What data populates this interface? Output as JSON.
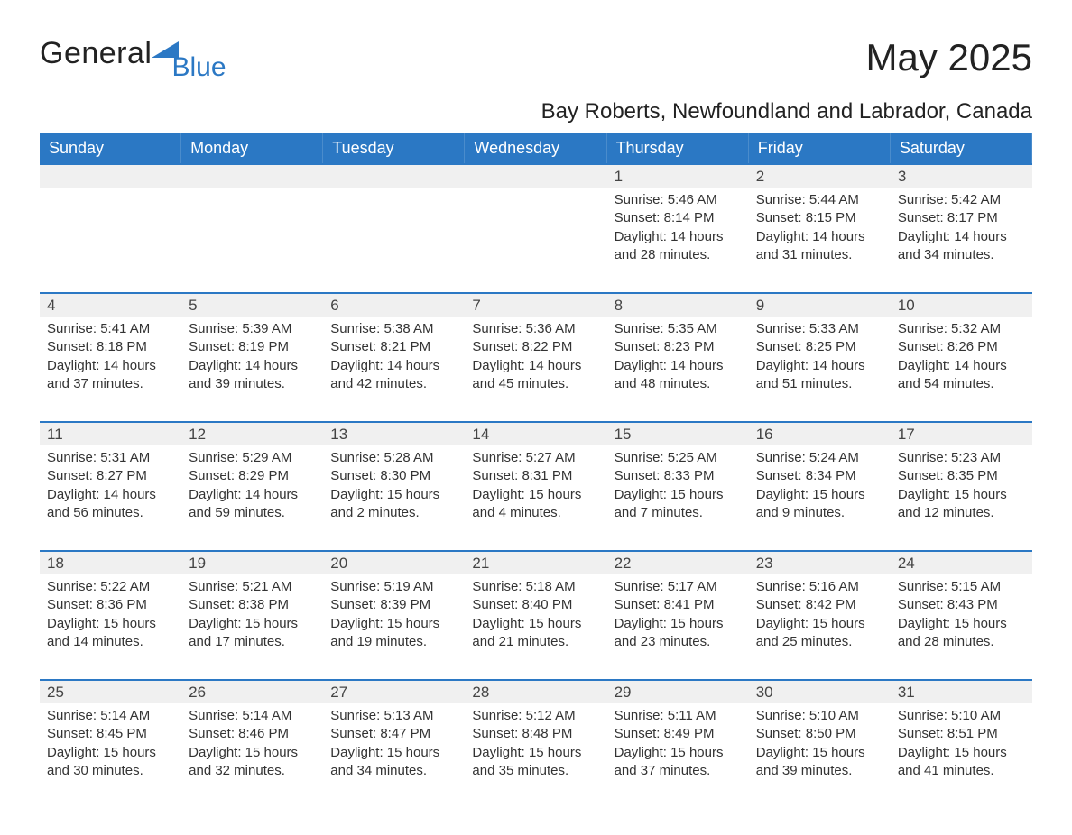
{
  "brand": {
    "word1": "General",
    "word2": "Blue"
  },
  "title": "May 2025",
  "subtitle": "Bay Roberts, Newfoundland and Labrador, Canada",
  "colors": {
    "brand": "#2b78c4",
    "row_bg": "#f0f0f0",
    "text": "#333333",
    "page_bg": "#ffffff"
  },
  "typography": {
    "title_fontsize": 42,
    "subtitle_fontsize": 24,
    "header_fontsize": 18,
    "daynum_fontsize": 17,
    "body_fontsize": 15,
    "font_family": "Arial"
  },
  "dayHeaders": [
    "Sunday",
    "Monday",
    "Tuesday",
    "Wednesday",
    "Thursday",
    "Friday",
    "Saturday"
  ],
  "labels": {
    "sunrise": "Sunrise:",
    "sunset": "Sunset:",
    "daylight": "Daylight:"
  },
  "weeks": [
    [
      null,
      null,
      null,
      null,
      {
        "n": 1,
        "sunrise": "5:46 AM",
        "sunset": "8:14 PM",
        "daylight": "14 hours and 28 minutes."
      },
      {
        "n": 2,
        "sunrise": "5:44 AM",
        "sunset": "8:15 PM",
        "daylight": "14 hours and 31 minutes."
      },
      {
        "n": 3,
        "sunrise": "5:42 AM",
        "sunset": "8:17 PM",
        "daylight": "14 hours and 34 minutes."
      }
    ],
    [
      {
        "n": 4,
        "sunrise": "5:41 AM",
        "sunset": "8:18 PM",
        "daylight": "14 hours and 37 minutes."
      },
      {
        "n": 5,
        "sunrise": "5:39 AM",
        "sunset": "8:19 PM",
        "daylight": "14 hours and 39 minutes."
      },
      {
        "n": 6,
        "sunrise": "5:38 AM",
        "sunset": "8:21 PM",
        "daylight": "14 hours and 42 minutes."
      },
      {
        "n": 7,
        "sunrise": "5:36 AM",
        "sunset": "8:22 PM",
        "daylight": "14 hours and 45 minutes."
      },
      {
        "n": 8,
        "sunrise": "5:35 AM",
        "sunset": "8:23 PM",
        "daylight": "14 hours and 48 minutes."
      },
      {
        "n": 9,
        "sunrise": "5:33 AM",
        "sunset": "8:25 PM",
        "daylight": "14 hours and 51 minutes."
      },
      {
        "n": 10,
        "sunrise": "5:32 AM",
        "sunset": "8:26 PM",
        "daylight": "14 hours and 54 minutes."
      }
    ],
    [
      {
        "n": 11,
        "sunrise": "5:31 AM",
        "sunset": "8:27 PM",
        "daylight": "14 hours and 56 minutes."
      },
      {
        "n": 12,
        "sunrise": "5:29 AM",
        "sunset": "8:29 PM",
        "daylight": "14 hours and 59 minutes."
      },
      {
        "n": 13,
        "sunrise": "5:28 AM",
        "sunset": "8:30 PM",
        "daylight": "15 hours and 2 minutes."
      },
      {
        "n": 14,
        "sunrise": "5:27 AM",
        "sunset": "8:31 PM",
        "daylight": "15 hours and 4 minutes."
      },
      {
        "n": 15,
        "sunrise": "5:25 AM",
        "sunset": "8:33 PM",
        "daylight": "15 hours and 7 minutes."
      },
      {
        "n": 16,
        "sunrise": "5:24 AM",
        "sunset": "8:34 PM",
        "daylight": "15 hours and 9 minutes."
      },
      {
        "n": 17,
        "sunrise": "5:23 AM",
        "sunset": "8:35 PM",
        "daylight": "15 hours and 12 minutes."
      }
    ],
    [
      {
        "n": 18,
        "sunrise": "5:22 AM",
        "sunset": "8:36 PM",
        "daylight": "15 hours and 14 minutes."
      },
      {
        "n": 19,
        "sunrise": "5:21 AM",
        "sunset": "8:38 PM",
        "daylight": "15 hours and 17 minutes."
      },
      {
        "n": 20,
        "sunrise": "5:19 AM",
        "sunset": "8:39 PM",
        "daylight": "15 hours and 19 minutes."
      },
      {
        "n": 21,
        "sunrise": "5:18 AM",
        "sunset": "8:40 PM",
        "daylight": "15 hours and 21 minutes."
      },
      {
        "n": 22,
        "sunrise": "5:17 AM",
        "sunset": "8:41 PM",
        "daylight": "15 hours and 23 minutes."
      },
      {
        "n": 23,
        "sunrise": "5:16 AM",
        "sunset": "8:42 PM",
        "daylight": "15 hours and 25 minutes."
      },
      {
        "n": 24,
        "sunrise": "5:15 AM",
        "sunset": "8:43 PM",
        "daylight": "15 hours and 28 minutes."
      }
    ],
    [
      {
        "n": 25,
        "sunrise": "5:14 AM",
        "sunset": "8:45 PM",
        "daylight": "15 hours and 30 minutes."
      },
      {
        "n": 26,
        "sunrise": "5:14 AM",
        "sunset": "8:46 PM",
        "daylight": "15 hours and 32 minutes."
      },
      {
        "n": 27,
        "sunrise": "5:13 AM",
        "sunset": "8:47 PM",
        "daylight": "15 hours and 34 minutes."
      },
      {
        "n": 28,
        "sunrise": "5:12 AM",
        "sunset": "8:48 PM",
        "daylight": "15 hours and 35 minutes."
      },
      {
        "n": 29,
        "sunrise": "5:11 AM",
        "sunset": "8:49 PM",
        "daylight": "15 hours and 37 minutes."
      },
      {
        "n": 30,
        "sunrise": "5:10 AM",
        "sunset": "8:50 PM",
        "daylight": "15 hours and 39 minutes."
      },
      {
        "n": 31,
        "sunrise": "5:10 AM",
        "sunset": "8:51 PM",
        "daylight": "15 hours and 41 minutes."
      }
    ]
  ]
}
